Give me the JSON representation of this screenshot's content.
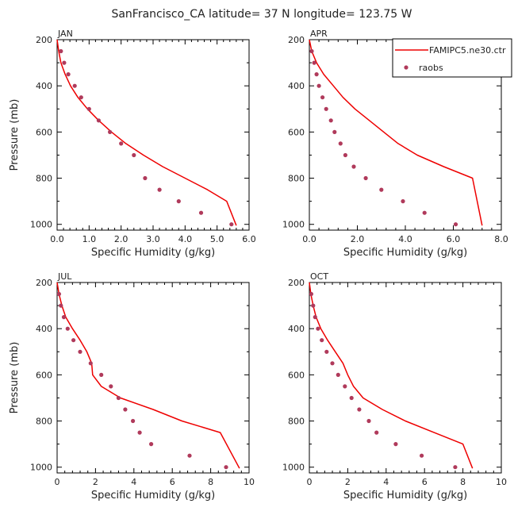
{
  "title": "SanFrancisco_CA  latitude= 37 N longitude= 123.75 W",
  "legend": {
    "model_label": "FAMIPC5.ne30.ctr",
    "obs_label": "raobs"
  },
  "colors": {
    "model": "#ee0000",
    "obs": "#b03a5b",
    "axis": "#000000"
  },
  "chart_data": [
    {
      "type": "line",
      "panel": "JAN",
      "xlabel": "Specific Humidity (g/kg)",
      "ylabel": "Pressure (mb)",
      "xlim": [
        0,
        6
      ],
      "ylim": [
        200,
        1025
      ],
      "y_inverted": true,
      "xticks": [
        "0.0",
        "1.0",
        "2.0",
        "3.0",
        "4.0",
        "5.0",
        "6.0"
      ],
      "yticks": [
        "200",
        "400",
        "600",
        "800",
        "1000"
      ],
      "series": [
        {
          "name": "FAMIPC5.ne30.ctr",
          "style": "line",
          "x": [
            0.0,
            0.05,
            0.12,
            0.25,
            0.42,
            0.65,
            0.95,
            1.3,
            1.7,
            2.15,
            2.7,
            3.3,
            4.0,
            4.7,
            5.3,
            5.6
          ],
          "y": [
            200,
            250,
            300,
            350,
            400,
            450,
            500,
            550,
            600,
            650,
            700,
            750,
            800,
            850,
            900,
            1005
          ]
        },
        {
          "name": "raobs",
          "style": "markers",
          "x": [
            0.12,
            0.22,
            0.35,
            0.55,
            0.75,
            1.0,
            1.3,
            1.65,
            2.0,
            2.4,
            2.75,
            3.2,
            3.8,
            4.5,
            5.45
          ],
          "y": [
            250,
            300,
            350,
            400,
            450,
            500,
            550,
            600,
            650,
            700,
            800,
            850,
            900,
            950,
            1000
          ]
        }
      ]
    },
    {
      "type": "line",
      "panel": "APR",
      "xlabel": "Specific Humidity (g/kg)",
      "ylabel": "",
      "xlim": [
        0,
        8
      ],
      "ylim": [
        200,
        1025
      ],
      "y_inverted": true,
      "xticks": [
        "0.0",
        "2.0",
        "4.0",
        "6.0",
        "8.0"
      ],
      "yticks": [
        "200",
        "400",
        "600",
        "800",
        "1000"
      ],
      "series": [
        {
          "name": "FAMIPC5.ne30.ctr",
          "style": "line",
          "x": [
            0.0,
            0.1,
            0.3,
            0.6,
            1.0,
            1.4,
            1.9,
            2.5,
            3.1,
            3.7,
            4.5,
            5.6,
            6.8,
            7.2
          ],
          "y": [
            200,
            250,
            300,
            350,
            400,
            450,
            500,
            550,
            600,
            650,
            700,
            750,
            800,
            1005
          ]
        },
        {
          "name": "raobs",
          "style": "markers",
          "x": [
            0.1,
            0.2,
            0.3,
            0.4,
            0.55,
            0.7,
            0.9,
            1.05,
            1.3,
            1.5,
            1.85,
            2.35,
            3.0,
            3.9,
            4.8,
            6.1
          ],
          "y": [
            250,
            300,
            350,
            400,
            450,
            500,
            550,
            600,
            650,
            700,
            750,
            800,
            850,
            900,
            950,
            1000
          ]
        }
      ]
    },
    {
      "type": "line",
      "panel": "JUL",
      "xlabel": "Specific Humidity (g/kg)",
      "ylabel": "Pressure (mb)",
      "xlim": [
        0,
        10
      ],
      "ylim": [
        200,
        1025
      ],
      "y_inverted": true,
      "xticks": [
        "0",
        "2",
        "4",
        "6",
        "8",
        "10"
      ],
      "yticks": [
        "200",
        "400",
        "600",
        "800",
        "1000"
      ],
      "series": [
        {
          "name": "FAMIPC5.ne30.ctr",
          "style": "line",
          "x": [
            0.0,
            0.1,
            0.25,
            0.45,
            0.8,
            1.2,
            1.55,
            1.8,
            1.85,
            2.3,
            3.3,
            5.0,
            6.5,
            8.5,
            9.5
          ],
          "y": [
            200,
            250,
            300,
            350,
            400,
            450,
            500,
            550,
            600,
            650,
            700,
            750,
            800,
            850,
            1005
          ]
        },
        {
          "name": "raobs",
          "style": "markers",
          "x": [
            0.1,
            0.2,
            0.35,
            0.55,
            0.85,
            1.2,
            1.75,
            2.3,
            2.8,
            3.2,
            3.55,
            3.95,
            4.3,
            4.9,
            6.9,
            8.8
          ],
          "y": [
            250,
            300,
            350,
            400,
            450,
            500,
            550,
            600,
            650,
            700,
            750,
            800,
            850,
            900,
            950,
            1000
          ]
        }
      ]
    },
    {
      "type": "line",
      "panel": "OCT",
      "xlabel": "Specific Humidity (g/kg)",
      "ylabel": "",
      "xlim": [
        0,
        10
      ],
      "ylim": [
        200,
        1025
      ],
      "y_inverted": true,
      "xticks": [
        "0",
        "2",
        "4",
        "6",
        "8",
        "10"
      ],
      "yticks": [
        "200",
        "400",
        "600",
        "800",
        "1000"
      ],
      "series": [
        {
          "name": "FAMIPC5.ne30.ctr",
          "style": "line",
          "x": [
            0.0,
            0.08,
            0.2,
            0.35,
            0.6,
            0.95,
            1.35,
            1.75,
            2.0,
            2.3,
            2.8,
            3.8,
            5.0,
            6.5,
            8.0,
            8.5
          ],
          "y": [
            200,
            250,
            300,
            350,
            400,
            450,
            500,
            550,
            600,
            650,
            700,
            750,
            800,
            850,
            900,
            1005
          ]
        },
        {
          "name": "raobs",
          "style": "markers",
          "x": [
            0.1,
            0.2,
            0.3,
            0.45,
            0.65,
            0.9,
            1.2,
            1.5,
            1.85,
            2.2,
            2.6,
            3.1,
            3.5,
            4.5,
            5.85,
            7.6
          ],
          "y": [
            250,
            300,
            350,
            400,
            450,
            500,
            550,
            600,
            650,
            700,
            750,
            800,
            850,
            900,
            950,
            1000
          ]
        }
      ]
    }
  ]
}
